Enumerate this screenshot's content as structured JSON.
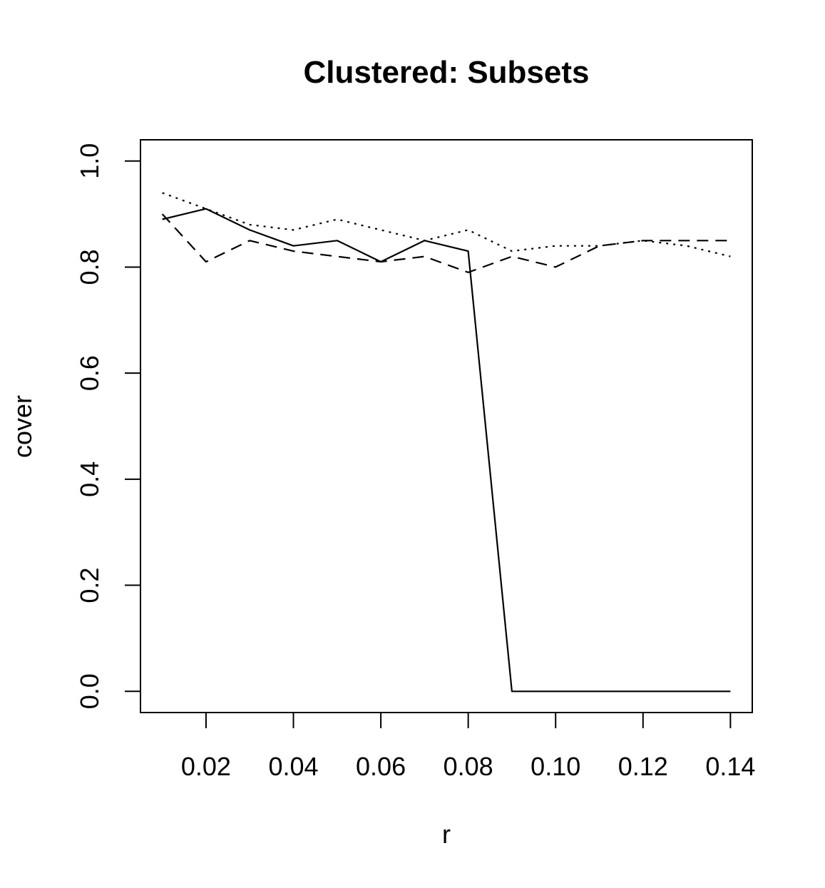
{
  "chart_data": {
    "type": "line",
    "title": "Clustered: Subsets",
    "xlabel": "r",
    "ylabel": "cover",
    "xlim": [
      0.005,
      0.145
    ],
    "ylim": [
      -0.04,
      1.04
    ],
    "xticks": [
      0.02,
      0.04,
      0.06,
      0.08,
      0.1,
      0.12,
      0.14
    ],
    "xtick_labels": [
      "0.02",
      "0.04",
      "0.06",
      "0.08",
      "0.10",
      "0.12",
      "0.14"
    ],
    "yticks": [
      0.0,
      0.2,
      0.4,
      0.6,
      0.8,
      1.0
    ],
    "ytick_labels": [
      "0.0",
      "0.2",
      "0.4",
      "0.6",
      "0.8",
      "1.0"
    ],
    "grid": false,
    "legend": "none",
    "x": [
      0.01,
      0.02,
      0.03,
      0.04,
      0.05,
      0.06,
      0.07,
      0.08,
      0.09,
      0.1,
      0.11,
      0.12,
      0.13,
      0.14
    ],
    "series": [
      {
        "style": "solid",
        "values": [
          0.89,
          0.91,
          0.87,
          0.84,
          0.85,
          0.81,
          0.85,
          0.83,
          0.0,
          0.0,
          0.0,
          0.0,
          0.0,
          0.0
        ]
      },
      {
        "style": "dashed",
        "values": [
          0.9,
          0.81,
          0.85,
          0.83,
          0.82,
          0.81,
          0.82,
          0.79,
          0.82,
          0.8,
          0.84,
          0.85,
          0.85,
          0.85
        ]
      },
      {
        "style": "dotted",
        "values": [
          0.94,
          0.91,
          0.88,
          0.87,
          0.89,
          0.87,
          0.85,
          0.87,
          0.83,
          0.84,
          0.84,
          0.85,
          0.84,
          0.82
        ]
      }
    ]
  }
}
